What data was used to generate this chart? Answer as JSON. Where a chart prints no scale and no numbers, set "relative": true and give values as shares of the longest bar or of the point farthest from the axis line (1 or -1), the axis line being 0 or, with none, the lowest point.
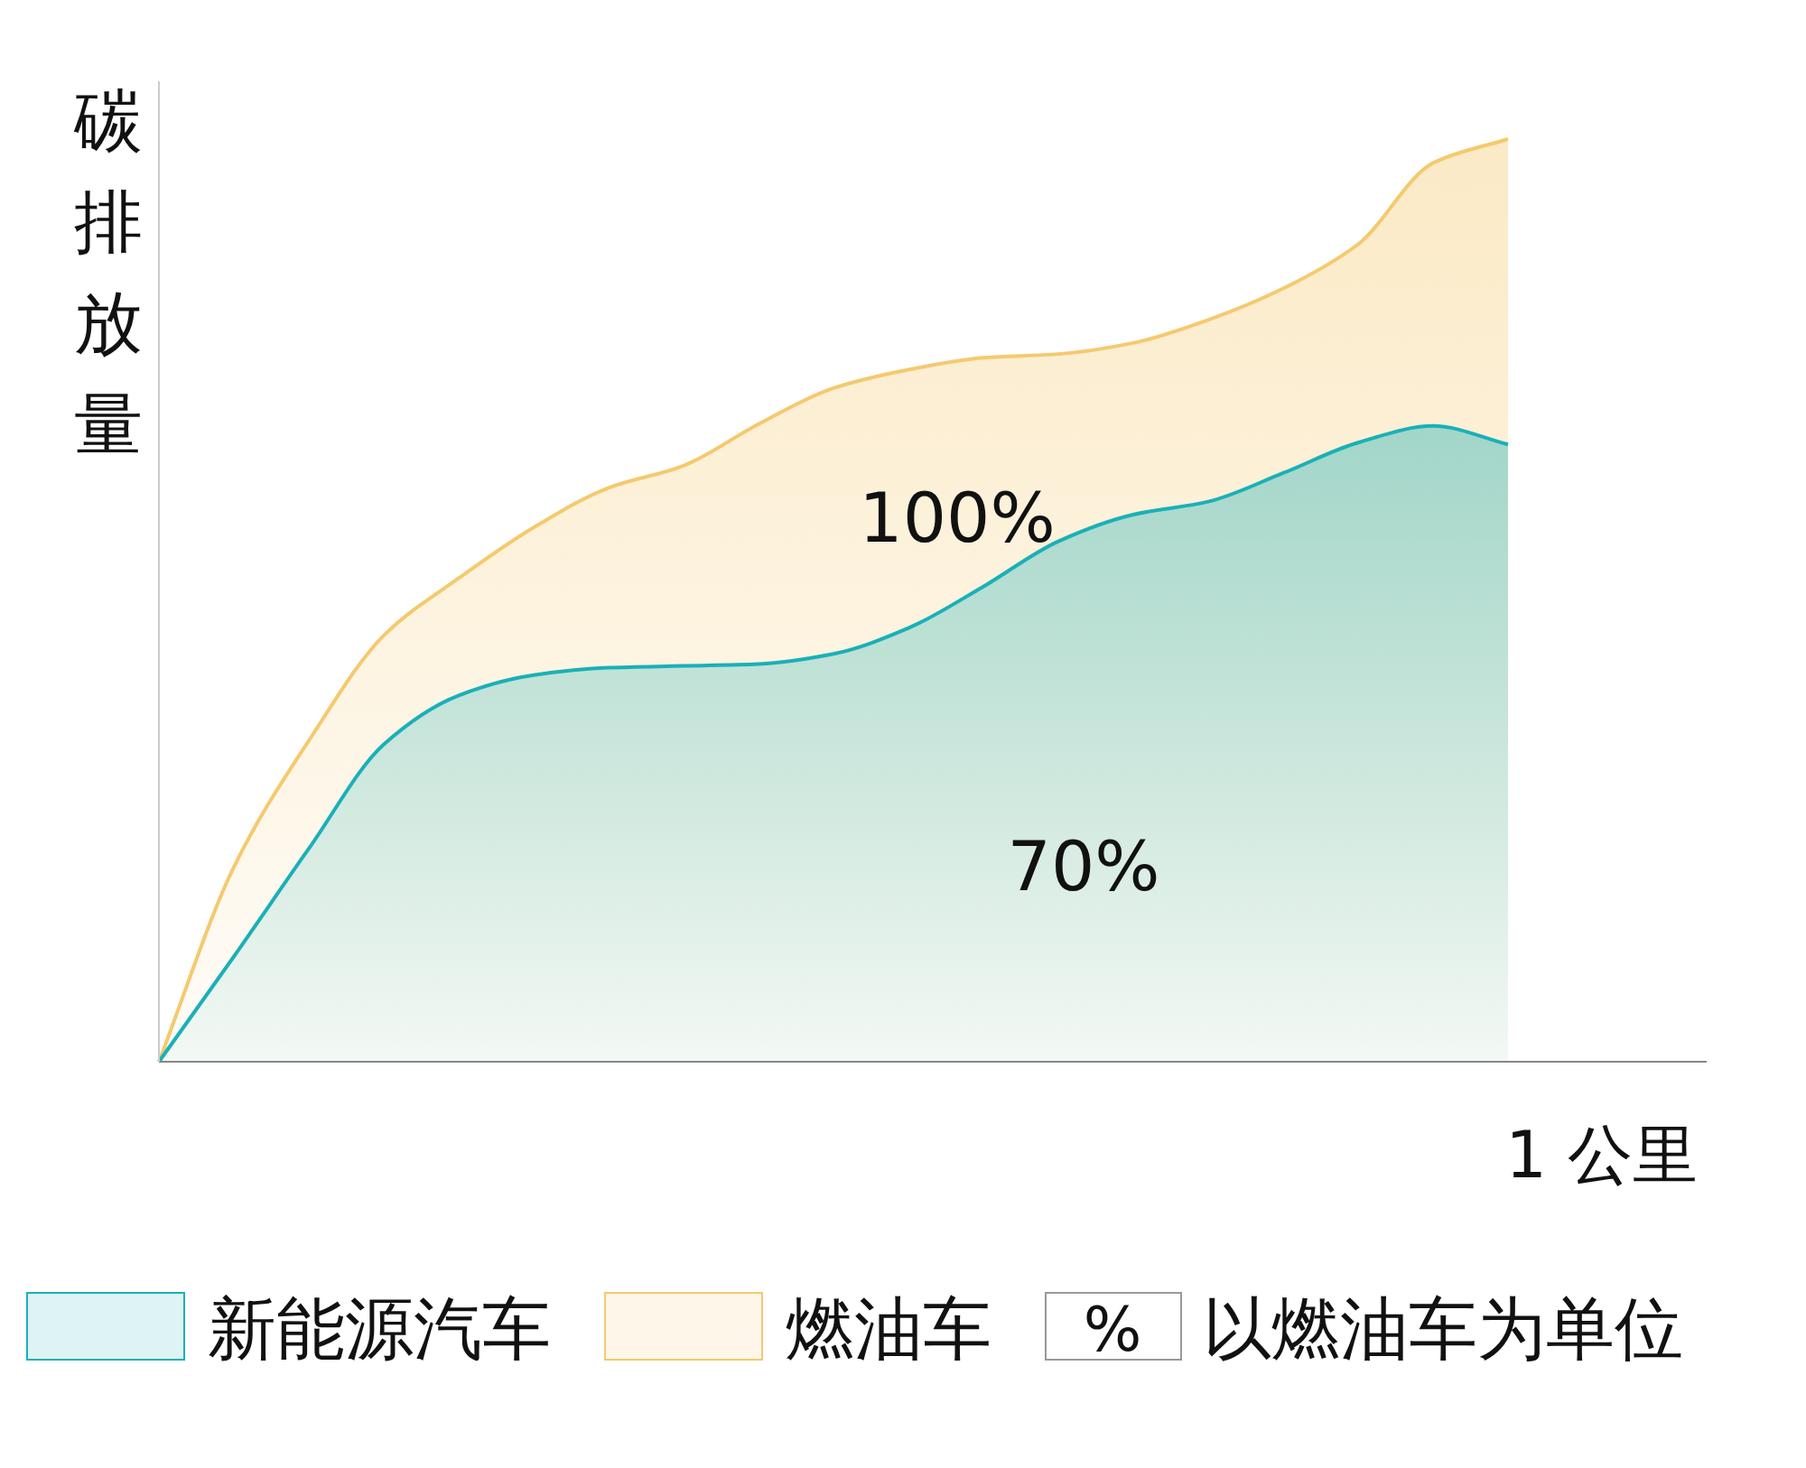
{
  "chart_data": {
    "type": "area",
    "relative": true,
    "ylabel": "碳排放量",
    "xlabel": "1 公里",
    "categories": [
      null,
      null,
      null,
      null,
      null,
      null,
      null,
      null,
      null,
      null,
      null,
      null,
      null,
      null,
      null,
      null,
      null,
      null,
      null
    ],
    "series": [
      {
        "name": "新能源汽车",
        "color": "#1ab0b8",
        "values": [
          0,
          0.114,
          0.231,
          0.344,
          0.397,
          0.419,
          0.427,
          0.429,
          0.431,
          0.442,
          0.47,
          0.515,
          0.564,
          0.593,
          0.607,
          0.638,
          0.671,
          0.689,
          0.669
        ]
      },
      {
        "name": "燃油车",
        "color": "#f5c96e",
        "values": [
          0,
          0.211,
          0.348,
          0.462,
          0.524,
          0.579,
          0.622,
          0.646,
          0.691,
          0.73,
          0.75,
          0.763,
          0.767,
          0.779,
          0.804,
          0.838,
          0.886,
          0.974,
          1
        ]
      }
    ],
    "annotations": [
      "100%",
      "70%",
      "%",
      "以燃油车为单位"
    ],
    "legend": "bottom",
    "grid": false
  }
}
